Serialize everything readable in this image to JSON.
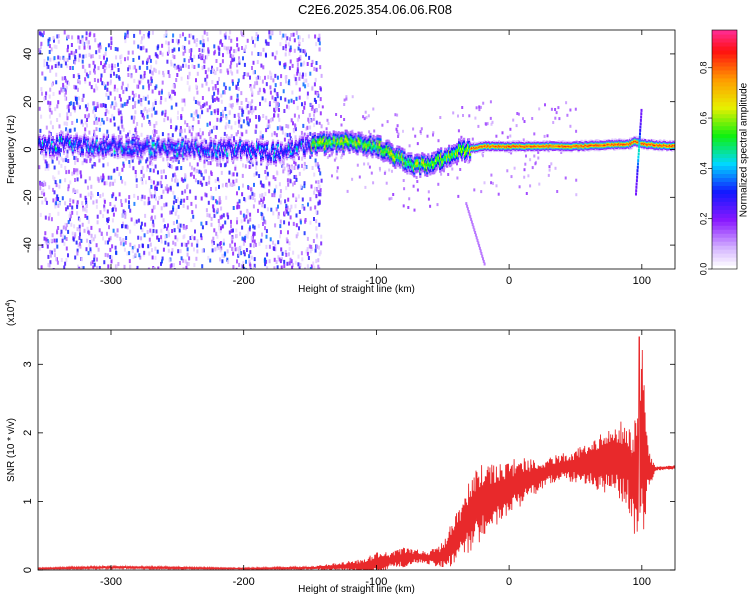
{
  "title": "C2E6.2025.354.06.06.R08",
  "chart_data": [
    {
      "type": "heatmap",
      "xlabel": "Height of straight line (km)",
      "ylabel": "Frequency (Hz)",
      "xlim": [
        -355,
        125
      ],
      "ylim": [
        -50,
        50
      ],
      "xticks": [
        -300,
        -200,
        -100,
        0,
        100
      ],
      "yticks": [
        -40,
        -20,
        0,
        20,
        40
      ],
      "colorbar": {
        "label": "Normalized spectral amplitude",
        "range": [
          0,
          0.95
        ],
        "ticks": [
          0.0,
          0.2,
          0.4,
          0.6,
          0.8
        ],
        "tick_labels": [
          "0.0",
          "0.2",
          "0.4",
          "0.6",
          "0.8"
        ]
      },
      "ridge": {
        "x": [
          -355,
          -330,
          -300,
          -250,
          -200,
          -170,
          -150,
          -120,
          -100,
          -90,
          -80,
          -70,
          -60,
          -50,
          -40,
          -30,
          -20,
          0,
          50,
          90,
          95,
          100,
          125
        ],
        "frequency": [
          1,
          2,
          1,
          0,
          0,
          -2,
          2,
          3,
          1,
          -2,
          -5,
          -7,
          -6,
          -4,
          -1,
          0,
          1,
          1,
          1,
          2,
          3,
          2,
          1
        ]
      },
      "noise_region": {
        "x_from": -355,
        "x_to": -150
      }
    },
    {
      "type": "line",
      "xlabel": "Height of straight line (km)",
      "ylabel": "SNR (10 * v/v)",
      "y_scale_label": "(x10",
      "y_scale_exponent": "4",
      "y_scale_suffix": ")",
      "xlim": [
        -355,
        125
      ],
      "ylim": [
        0,
        3.5
      ],
      "xticks": [
        -300,
        -200,
        -100,
        0,
        100
      ],
      "yticks": [
        0,
        1,
        2,
        3
      ],
      "series": [
        {
          "color": "#e8292b",
          "x": [
            -355,
            -300,
            -200,
            -150,
            -110,
            -100,
            -90,
            -80,
            -70,
            -60,
            -50,
            -40,
            -30,
            -20,
            -10,
            0,
            10,
            20,
            30,
            40,
            50,
            60,
            70,
            80,
            90,
            95,
            98,
            100,
            103,
            106,
            110,
            125
          ],
          "mean": [
            0.02,
            0.04,
            0.02,
            0.03,
            0.06,
            0.1,
            0.14,
            0.18,
            0.2,
            0.18,
            0.2,
            0.45,
            0.8,
            1.0,
            1.1,
            1.2,
            1.3,
            1.35,
            1.45,
            1.5,
            1.52,
            1.55,
            1.55,
            1.6,
            1.55,
            1.3,
            1.5,
            1.8,
            1.6,
            1.45,
            1.48,
            1.5
          ],
          "spread": [
            0.01,
            0.02,
            0.01,
            0.02,
            0.1,
            0.18,
            0.12,
            0.15,
            0.1,
            0.1,
            0.2,
            0.4,
            0.55,
            0.55,
            0.45,
            0.4,
            0.35,
            0.25,
            0.2,
            0.2,
            0.25,
            0.3,
            0.45,
            0.55,
            0.65,
            0.9,
            1.0,
            1.6,
            0.8,
            0.25,
            0.03,
            0.03
          ],
          "peak": {
            "x": 98,
            "value": 3.4
          }
        }
      ]
    }
  ]
}
